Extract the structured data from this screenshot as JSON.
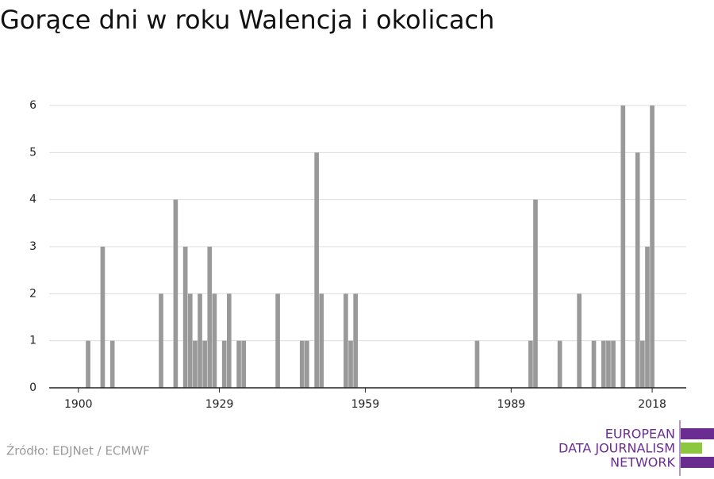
{
  "chart_data": {
    "type": "bar",
    "title": "Gorące dni w roku Walencja i okolicach",
    "x": [
      1902,
      1905,
      1907,
      1917,
      1920,
      1922,
      1923,
      1924,
      1925,
      1926,
      1927,
      1928,
      1930,
      1931,
      1933,
      1934,
      1941,
      1946,
      1947,
      1949,
      1950,
      1955,
      1956,
      1957,
      1982,
      1993,
      1994,
      1999,
      2003,
      2006,
      2008,
      2009,
      2010,
      2012,
      2015,
      2016,
      2017,
      2018
    ],
    "values": [
      1,
      3,
      1,
      2,
      4,
      3,
      2,
      1,
      2,
      1,
      3,
      2,
      1,
      2,
      1,
      1,
      2,
      1,
      1,
      5,
      2,
      2,
      1,
      2,
      1,
      1,
      4,
      1,
      2,
      1,
      1,
      1,
      1,
      6,
      5,
      1,
      3,
      6
    ],
    "color": "#999999",
    "xlim": [
      1894,
      2025
    ],
    "xticks": [
      1900,
      1929,
      1959,
      1989,
      2018
    ],
    "ylim": [
      0,
      6
    ],
    "yticks": [
      0,
      1,
      2,
      3,
      4,
      5,
      6
    ],
    "grid": true,
    "source": "Źródło: EDJNet / ECMWF",
    "logo": [
      "EUROPEAN",
      "DATA JOURNALISM",
      "NETWORK"
    ]
  }
}
